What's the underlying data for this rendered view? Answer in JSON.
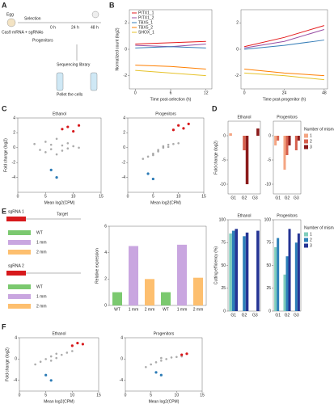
{
  "figure": {
    "panel_labels": [
      "A",
      "B",
      "C",
      "D",
      "E",
      "F"
    ],
    "schematic_a": [
      "Egg",
      "Cas9 mRNA + sgRNAs",
      "Selection",
      "Progenitors",
      "0 h",
      "24 h",
      "48 h",
      "Sequencing library",
      "Pellet the cells"
    ],
    "schematic_e": [
      "sgRNA 1",
      "sgRNA 2",
      "Target",
      "WT",
      "1 mm",
      "2 mm",
      "WT",
      "1 mm",
      "2 mm"
    ]
  },
  "chart_data": [
    {
      "type": "line",
      "xlabel": "Time post-selection (h)",
      "ylabel": "Normalized count (log2)",
      "x": [
        0,
        6,
        12
      ],
      "xlim": [
        -1,
        13
      ],
      "xticks": [
        0,
        6,
        12
      ],
      "ylim": [
        -3,
        3
      ],
      "yticks": [
        -2,
        0,
        2
      ],
      "legend": "top-left",
      "series": [
        {
          "name": "PITX1_1",
          "color": "#e41a1c",
          "values": [
            0.4,
            0.5,
            0.6
          ]
        },
        {
          "name": "PITX1_2",
          "color": "#984ea3",
          "values": [
            0.3,
            0.2,
            0.4
          ]
        },
        {
          "name": "TBX5_1",
          "color": "#377eb8",
          "values": [
            0.1,
            0.2,
            0.1
          ]
        },
        {
          "name": "TBX5_2",
          "color": "#ff7f00",
          "values": [
            -1.2,
            -1.3,
            -1.5
          ]
        },
        {
          "name": "SHOX_1",
          "color": "#e6c229",
          "values": [
            -1.6,
            -1.8,
            -2.0
          ]
        }
      ]
    },
    {
      "type": "line",
      "xlabel": "Time post-progenitor (h)",
      "x": [
        0,
        24,
        48
      ],
      "xlim": [
        -2,
        50
      ],
      "xticks": [
        0,
        24,
        48
      ],
      "ylim": [
        -3,
        3
      ],
      "yticks": [
        -2,
        0,
        2
      ],
      "series": [
        {
          "color": "#e41a1c",
          "values": [
            0.2,
            0.9,
            1.8
          ]
        },
        {
          "color": "#984ea3",
          "values": [
            0.1,
            0.6,
            1.5
          ]
        },
        {
          "color": "#377eb8",
          "values": [
            0,
            0.3,
            0.7
          ]
        },
        {
          "color": "#ff7f00",
          "values": [
            -1.5,
            -1.8,
            -2
          ]
        },
        {
          "color": "#e6c229",
          "values": [
            -1.8,
            -2,
            -2.3
          ]
        }
      ]
    },
    {
      "type": "scatter",
      "title": "Ethanol",
      "xlabel": "Mean log2(CPM)",
      "ylabel": "Fold change (log2)",
      "xlim": [
        0,
        15
      ],
      "xticks": [
        0,
        5,
        10,
        15
      ],
      "ylim": [
        -6,
        4
      ],
      "yticks": [
        -4,
        -2,
        0,
        2,
        4
      ],
      "series": [
        {
          "color": "#888888",
          "x": [
            3,
            4,
            5,
            5,
            6,
            6,
            7,
            7,
            8,
            8,
            9,
            9,
            10,
            11
          ],
          "values": [
            0.5,
            -0.3,
            0.8,
            -0.6,
            0.4,
            -0.2,
            1.2,
            -0.9,
            0.3,
            -0.4,
            0.6,
            -0.1,
            0.2,
            0
          ]
        },
        {
          "color": "#d7191c",
          "x": [
            8,
            9,
            10,
            11
          ],
          "values": [
            2.5,
            2.8,
            2.2,
            3
          ]
        },
        {
          "color": "#2c7bb6",
          "x": [
            6,
            7
          ],
          "values": [
            -3,
            -4
          ]
        }
      ]
    },
    {
      "type": "scatter",
      "title": "Progenitors",
      "xlabel": "Mean log2(CPM)",
      "xlim": [
        0,
        15
      ],
      "xticks": [
        0,
        5,
        10,
        15
      ],
      "ylim": [
        -6,
        4
      ],
      "yticks": [
        -4,
        -2,
        0,
        2,
        4
      ],
      "series": [
        {
          "color": "#888888",
          "x": [
            3,
            4,
            5,
            5,
            6,
            6,
            7,
            7,
            8,
            8,
            9,
            10
          ],
          "values": [
            -1.5,
            -1.2,
            -0.8,
            -1,
            -0.5,
            -0.3,
            0,
            0.2,
            0.4,
            0.1,
            0.5,
            0.6
          ]
        },
        {
          "color": "#d7191c",
          "x": [
            9,
            10,
            11,
            12
          ],
          "values": [
            2.4,
            3,
            2.6,
            3.2
          ]
        },
        {
          "color": "#2c7bb6",
          "x": [
            4,
            5
          ],
          "values": [
            -3.5,
            -4.2
          ]
        }
      ]
    },
    {
      "type": "bar",
      "title": "Ethanol",
      "ylabel": "Fold change (log2)",
      "categories": [
        "G1",
        "G2",
        "G3"
      ],
      "ylim": [
        -12,
        3
      ],
      "yticks": [
        -10,
        -5,
        0
      ],
      "series": [
        {
          "color": "#f4a582",
          "values": [
            0.5,
            null,
            null
          ]
        },
        {
          "color": "#d6604d",
          "values": [
            null,
            -3,
            null
          ]
        },
        {
          "color": "#8b1a1a",
          "values": [
            null,
            -10,
            1.5
          ]
        }
      ]
    },
    {
      "type": "bar",
      "title": "Progenitors",
      "categories": [
        "G1",
        "G2",
        "G3"
      ],
      "ylim": [
        -12,
        3
      ],
      "yticks": [
        -10,
        -5,
        0
      ],
      "legend_title": "Number of mismatches",
      "legend": "right",
      "series": [
        {
          "name": "1",
          "color": "#f4a582",
          "values": [
            -2,
            -7,
            null
          ]
        },
        {
          "name": "2",
          "color": "#d6604d",
          "values": [
            -1,
            -4,
            -3
          ]
        },
        {
          "name": "3",
          "color": "#8b1a1a",
          "values": [
            null,
            -2,
            -1
          ]
        }
      ]
    },
    {
      "type": "bar",
      "title": "Ethanol",
      "ylabel": "Cutting efficiency (%)",
      "categories": [
        "G1",
        "G2",
        "G3"
      ],
      "ylim": [
        0,
        100
      ],
      "yticks": [
        0,
        25,
        50,
        75,
        100
      ],
      "series": [
        {
          "color": "#7fcdbb",
          "values": [
            85,
            null,
            null
          ]
        },
        {
          "color": "#2c7fb8",
          "values": [
            88,
            82,
            null
          ]
        },
        {
          "color": "#253494",
          "values": [
            90,
            86,
            88
          ]
        }
      ]
    },
    {
      "type": "bar",
      "title": "Progenitors",
      "categories": [
        "G1",
        "G2",
        "G3"
      ],
      "ylim": [
        0,
        100
      ],
      "yticks": [
        0,
        25,
        50,
        75,
        100
      ],
      "legend_title": "Number of mismatches",
      "legend": "right",
      "series": [
        {
          "name": "1",
          "color": "#7fcdbb",
          "values": [
            70,
            40,
            null
          ]
        },
        {
          "name": "2",
          "color": "#2c7fb8",
          "values": [
            80,
            60,
            75
          ]
        },
        {
          "name": "3",
          "color": "#253494",
          "values": [
            null,
            90,
            85
          ]
        }
      ]
    },
    {
      "type": "bar",
      "ylabel": "Relative expression",
      "categories": [
        "WT",
        "1 mm",
        "2 mm",
        "WT",
        "1 mm",
        "2 mm"
      ],
      "ylim": [
        0,
        6
      ],
      "yticks": [
        0,
        2,
        4,
        6
      ],
      "values": [
        1.0,
        4.5,
        2.0,
        1.0,
        4.6,
        2.1
      ],
      "colors": [
        "#7bc96f",
        "#c9a6e0",
        "#fdbf6f",
        "#7bc96f",
        "#c9a6e0",
        "#fdbf6f"
      ]
    },
    {
      "type": "scatter",
      "title": "Ethanol",
      "xlabel": "Mean log2(CPM)",
      "ylabel": "Fold change (log2)",
      "xlim": [
        0,
        15
      ],
      "xticks": [
        0,
        5,
        10,
        15
      ],
      "ylim": [
        -6,
        4
      ],
      "yticks": [
        -4,
        0,
        4
      ],
      "series": [
        {
          "color": "#888888",
          "x": [
            3,
            4,
            5,
            6,
            6,
            7,
            7,
            8,
            9,
            10
          ],
          "values": [
            -1,
            -0.5,
            0,
            -0.3,
            0.5,
            0.2,
            1,
            0.8,
            1.2,
            1.5
          ]
        },
        {
          "color": "#d7191c",
          "x": [
            10,
            11,
            12
          ],
          "values": [
            2.5,
            3,
            2.8
          ]
        },
        {
          "color": "#2c7bb6",
          "x": [
            5,
            6
          ],
          "values": [
            -3,
            -4
          ]
        }
      ]
    },
    {
      "type": "scatter",
      "title": "Progenitors",
      "xlabel": "Mean log2(CPM)",
      "xlim": [
        0,
        15
      ],
      "xticks": [
        0,
        5,
        10,
        15
      ],
      "ylim": [
        -6,
        4
      ],
      "yticks": [
        -4,
        0,
        4
      ],
      "series": [
        {
          "color": "#888888",
          "x": [
            4,
            5,
            6,
            7,
            7,
            8,
            9,
            10,
            11
          ],
          "values": [
            -1.5,
            -1,
            -0.6,
            -0.3,
            0.2,
            0,
            0.3,
            0.4,
            0.5
          ]
        },
        {
          "color": "#d7191c",
          "x": [
            11,
            12
          ],
          "values": [
            0.8,
            1
          ]
        },
        {
          "color": "#2c7bb6",
          "x": [
            6,
            7
          ],
          "values": [
            -2.5,
            -3
          ]
        }
      ]
    }
  ]
}
